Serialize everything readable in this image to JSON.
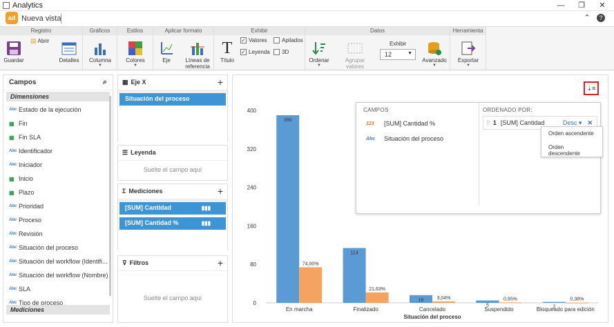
{
  "window": {
    "title": "Analytics"
  },
  "header": {
    "view_title": "Nueva vista",
    "logo_text": "ad"
  },
  "ribbon": {
    "groups": {
      "registro": "Registro",
      "graficos": "Gráficos",
      "estilos": "Estilos",
      "aplicar": "Aplicar formato",
      "exhibir": "Exhibir",
      "datos": "Datos",
      "herramienta": "Herramienta"
    },
    "guardar": "Guardar",
    "abrir": "Abrir",
    "detalles": "Detalles",
    "columna": "Columna",
    "colores": "Colores",
    "eje": "Eje",
    "lineas1": "Líneas de",
    "lineas2": "referencia",
    "titulo": "Título",
    "valores": "Valores",
    "leyenda": "Leyenda",
    "apilados": "Apilados",
    "d3": "3D",
    "ordenar": "Ordenar",
    "agrupar": "Agrupar valores",
    "exhibir_label": "Exhibir",
    "exhibir_value": "12",
    "avanzado": "Avanzado",
    "exportar": "Exportar"
  },
  "campos": {
    "title": "Campos",
    "dimensiones": "Dimensiones",
    "mediciones": "Mediciones",
    "items": [
      {
        "type": "Abc",
        "label": "Estado de la ejecución"
      },
      {
        "type": "cal",
        "label": "Fin"
      },
      {
        "type": "cal",
        "label": "Fin SLA"
      },
      {
        "type": "Abc",
        "label": "Identificador"
      },
      {
        "type": "Abc",
        "label": "Iniciador"
      },
      {
        "type": "cal",
        "label": "Inicio"
      },
      {
        "type": "cal",
        "label": "Plazo"
      },
      {
        "type": "Abc",
        "label": "Prioridad"
      },
      {
        "type": "Abc",
        "label": "Proceso"
      },
      {
        "type": "Abc",
        "label": "Revisión"
      },
      {
        "type": "Abc",
        "label": "Situación del proceso"
      },
      {
        "type": "Abc",
        "label": "Situación del workflow (Identifi..."
      },
      {
        "type": "Abc",
        "label": "Situación del workflow (Nombre)"
      },
      {
        "type": "Abc",
        "label": "SLA"
      },
      {
        "type": "Abc",
        "label": "Tipo de proceso"
      }
    ]
  },
  "ejex": {
    "title": "Eje X",
    "chip": "Situación del proceso"
  },
  "leyenda": {
    "title": "Leyenda",
    "drop": "Suelte el campo aquí"
  },
  "mediciones": {
    "title": "Mediciones",
    "chips": [
      "[SUM] Cantidad",
      "[SUM] Cantidad %"
    ]
  },
  "filtros": {
    "title": "Filtros",
    "drop": "Suelte el campo aquí"
  },
  "popup": {
    "campos_label": "CAMPOS",
    "ordenado_label": "ORDENADO POR:",
    "fields": [
      {
        "type": "123",
        "label": "[SUM] Cantidad %"
      },
      {
        "type": "Abc",
        "label": "Situación del proceso"
      }
    ],
    "sort_index": "1",
    "sort_field": "[SUM] Cantidad",
    "sort_dir": "Desc",
    "menu": [
      "Orden ascendente",
      "Orden descendente"
    ]
  },
  "colors": {
    "bar1": "#5b9bd5",
    "bar2": "#f4a460",
    "accent": "#3d95d5"
  },
  "chart_data": {
    "type": "bar",
    "xlabel": "Situación del proceso",
    "categories": [
      "En marcha",
      "Finalizado",
      "Cancelado",
      "Suspendido",
      "Bloqueado para edición"
    ],
    "ylim": [
      0,
      400
    ],
    "yticks": [
      0,
      80,
      160,
      240,
      320,
      400
    ],
    "series": [
      {
        "values": [
          390,
          114,
          16,
          5,
          2
        ],
        "labels": [
          "390",
          "114",
          "16",
          "5",
          "2"
        ]
      },
      {
        "values": [
          74.0,
          21.63,
          3.04,
          0.95,
          0.38
        ],
        "labels": [
          "74,00%",
          "21,63%",
          "3,04%",
          "0,95%",
          "0,38%"
        ]
      }
    ]
  }
}
